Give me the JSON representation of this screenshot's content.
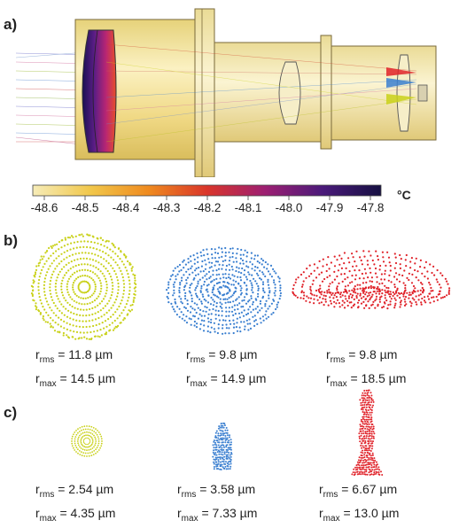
{
  "panels": {
    "a": "a)",
    "b": "b)",
    "c": "c)"
  },
  "colorbar": {
    "ticks": [
      "-48.6",
      "-48.5",
      "-48.4",
      "-48.3",
      "-48.2",
      "-48.1",
      "-48.0",
      "-47.9",
      "-47.8"
    ],
    "unit": "°C",
    "colors": [
      "#f6ecb8",
      "#f1c74a",
      "#ef8a1f",
      "#d9352a",
      "#9d1f72",
      "#4a1a7a",
      "#161042"
    ]
  },
  "row_b": [
    {
      "color": "#c9d11a",
      "rms_label": "r",
      "rms_sub": "rms",
      "rms_value": " = 11.8 µm",
      "max_label": "r",
      "max_sub": "max",
      "max_value": " = 14.5 µm"
    },
    {
      "color": "#3a7fd0",
      "rms_label": "r",
      "rms_sub": "rms",
      "rms_value": " = 9.8 µm",
      "max_label": "r",
      "max_sub": "max",
      "max_value": " = 14.9 µm"
    },
    {
      "color": "#e0232a",
      "rms_label": "r",
      "rms_sub": "rms",
      "rms_value": " = 9.8 µm",
      "max_label": "r",
      "max_sub": "max",
      "max_value": " = 18.5 µm"
    }
  ],
  "row_c": [
    {
      "color": "#c9d11a",
      "rms_label": "r",
      "rms_sub": "rms",
      "rms_value": " = 2.54 µm",
      "max_label": "r",
      "max_sub": "max",
      "max_value": " = 4.35 µm"
    },
    {
      "color": "#3a7fd0",
      "rms_label": "r",
      "rms_sub": "rms",
      "rms_value": " = 3.58 µm",
      "max_label": "r",
      "max_sub": "max",
      "max_value": " = 7.33 µm"
    },
    {
      "color": "#e0232a",
      "rms_label": "r",
      "rms_sub": "rms",
      "rms_value": " = 6.67 µm",
      "max_label": "r",
      "max_sub": "max",
      "max_value": " = 13.0 µm"
    }
  ]
}
